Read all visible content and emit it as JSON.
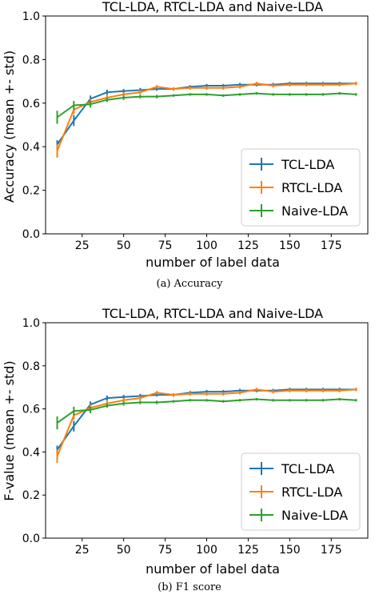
{
  "colors": {
    "tcl": "#1f77b4",
    "rtcl": "#ff7f0e",
    "naive": "#2ca02c"
  },
  "chart_data": [
    {
      "type": "line",
      "title": "TCL-LDA, RTCL-LDA and Naive-LDA",
      "xlabel": "number of label data",
      "ylabel": "Accuracy (mean +- std)",
      "caption": "(a)  Accuracy",
      "xlim": [
        3,
        197
      ],
      "ylim": [
        0,
        1
      ],
      "xticks": [
        25,
        50,
        75,
        100,
        125,
        150,
        175
      ],
      "xtick_labels": [
        "25",
        "50",
        "75",
        "100",
        "125",
        "150",
        "175"
      ],
      "yticks": [
        0,
        0.2,
        0.4,
        0.6,
        0.8,
        1.0
      ],
      "ytick_labels": [
        "0.0",
        "0.2",
        "0.4",
        "0.6",
        "0.8",
        "1.0"
      ],
      "grid": false,
      "legend_position": "lower-right",
      "x": [
        10,
        20,
        30,
        40,
        50,
        60,
        70,
        80,
        90,
        100,
        110,
        120,
        130,
        140,
        150,
        160,
        170,
        180,
        190
      ],
      "series": [
        {
          "name": "TCL-LDA",
          "color": "#1f77b4",
          "values": [
            0.41,
            0.52,
            0.62,
            0.65,
            0.655,
            0.66,
            0.665,
            0.665,
            0.675,
            0.68,
            0.68,
            0.685,
            0.685,
            0.685,
            0.69,
            0.69,
            0.69,
            0.69,
            0.69
          ],
          "errors": [
            0.02,
            0.025,
            0.015,
            0.012,
            0.01,
            0.01,
            0.008,
            0.008,
            0.008,
            0.008,
            0.008,
            0.008,
            0.008,
            0.008,
            0.008,
            0.008,
            0.008,
            0.008,
            0.008
          ]
        },
        {
          "name": "RTCL-LDA",
          "color": "#ff7f0e",
          "values": [
            0.38,
            0.57,
            0.605,
            0.625,
            0.64,
            0.65,
            0.675,
            0.665,
            0.67,
            0.67,
            0.67,
            0.675,
            0.69,
            0.68,
            0.685,
            0.685,
            0.685,
            0.685,
            0.69
          ],
          "errors": [
            0.03,
            0.02,
            0.015,
            0.012,
            0.01,
            0.01,
            0.008,
            0.008,
            0.008,
            0.008,
            0.008,
            0.008,
            0.008,
            0.008,
            0.008,
            0.008,
            0.008,
            0.008,
            0.008
          ]
        },
        {
          "name": "Naive-LDA",
          "color": "#2ca02c",
          "values": [
            0.535,
            0.59,
            0.595,
            0.615,
            0.625,
            0.63,
            0.63,
            0.635,
            0.64,
            0.64,
            0.635,
            0.64,
            0.645,
            0.64,
            0.64,
            0.64,
            0.64,
            0.645,
            0.64
          ],
          "errors": [
            0.03,
            0.02,
            0.015,
            0.01,
            0.01,
            0.008,
            0.008,
            0.006,
            0.006,
            0.006,
            0.006,
            0.006,
            0.006,
            0.006,
            0.006,
            0.006,
            0.006,
            0.006,
            0.006
          ]
        }
      ]
    },
    {
      "type": "line",
      "title": "TCL-LDA, RTCL-LDA and Naive-LDA",
      "xlabel": "number of label data",
      "ylabel": "F-value (mean +- std)",
      "caption": "(b)  F1 score",
      "xlim": [
        3,
        197
      ],
      "ylim": [
        0,
        1
      ],
      "xticks": [
        25,
        50,
        75,
        100,
        125,
        150,
        175
      ],
      "xtick_labels": [
        "25",
        "50",
        "75",
        "100",
        "125",
        "150",
        "175"
      ],
      "yticks": [
        0,
        0.2,
        0.4,
        0.6,
        0.8,
        1.0
      ],
      "ytick_labels": [
        "0.0",
        "0.2",
        "0.4",
        "0.6",
        "0.8",
        "1.0"
      ],
      "grid": false,
      "legend_position": "lower-right",
      "x": [
        10,
        20,
        30,
        40,
        50,
        60,
        70,
        80,
        90,
        100,
        110,
        120,
        130,
        140,
        150,
        160,
        170,
        180,
        190
      ],
      "series": [
        {
          "name": "TCL-LDA",
          "color": "#1f77b4",
          "values": [
            0.41,
            0.52,
            0.62,
            0.65,
            0.655,
            0.66,
            0.665,
            0.665,
            0.675,
            0.68,
            0.68,
            0.685,
            0.685,
            0.685,
            0.69,
            0.69,
            0.69,
            0.69,
            0.69
          ],
          "errors": [
            0.02,
            0.025,
            0.015,
            0.012,
            0.01,
            0.01,
            0.008,
            0.008,
            0.008,
            0.008,
            0.008,
            0.008,
            0.008,
            0.008,
            0.008,
            0.008,
            0.008,
            0.008,
            0.008
          ]
        },
        {
          "name": "RTCL-LDA",
          "color": "#ff7f0e",
          "values": [
            0.38,
            0.57,
            0.605,
            0.625,
            0.64,
            0.65,
            0.675,
            0.665,
            0.67,
            0.67,
            0.67,
            0.675,
            0.69,
            0.68,
            0.685,
            0.685,
            0.685,
            0.685,
            0.69
          ],
          "errors": [
            0.03,
            0.02,
            0.015,
            0.012,
            0.01,
            0.01,
            0.008,
            0.008,
            0.008,
            0.008,
            0.008,
            0.008,
            0.008,
            0.008,
            0.008,
            0.008,
            0.008,
            0.008,
            0.008
          ]
        },
        {
          "name": "Naive-LDA",
          "color": "#2ca02c",
          "values": [
            0.535,
            0.59,
            0.595,
            0.615,
            0.625,
            0.63,
            0.63,
            0.635,
            0.64,
            0.64,
            0.635,
            0.64,
            0.645,
            0.64,
            0.64,
            0.64,
            0.64,
            0.645,
            0.64
          ],
          "errors": [
            0.03,
            0.02,
            0.015,
            0.01,
            0.01,
            0.008,
            0.008,
            0.006,
            0.006,
            0.006,
            0.006,
            0.006,
            0.006,
            0.006,
            0.006,
            0.006,
            0.006,
            0.006,
            0.006
          ]
        }
      ]
    }
  ]
}
